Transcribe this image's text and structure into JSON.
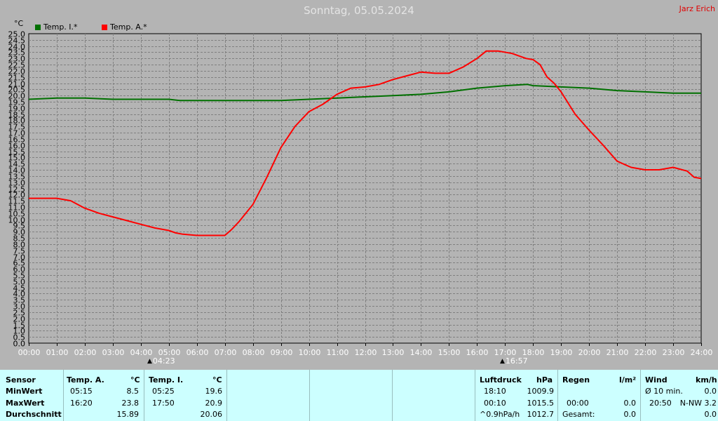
{
  "title": "Sonntag, 05.05.2024",
  "author": "Jarz Erich",
  "unit": "°C",
  "legend": [
    {
      "label": "Temp. I.*",
      "color": "#007000"
    },
    {
      "label": "Temp. A.*",
      "color": "#ff0000"
    }
  ],
  "sunrise": "04:23",
  "sunset": "16:57",
  "chart_data": {
    "type": "line",
    "title": "Sonntag, 05.05.2024",
    "xlabel": "",
    "ylabel": "°C",
    "xlim": [
      0,
      24
    ],
    "ylim": [
      0,
      25
    ],
    "grid": true,
    "legend_position": "top-left",
    "x_ticks": [
      "00:00",
      "01:00",
      "02:00",
      "03:00",
      "04:00",
      "05:00",
      "06:00",
      "07:00",
      "08:00",
      "09:00",
      "10:00",
      "11:00",
      "12:00",
      "13:00",
      "14:00",
      "15:00",
      "16:00",
      "17:00",
      "18:00",
      "19:00",
      "20:00",
      "21:00",
      "22:00",
      "23:00",
      "24:00"
    ],
    "y_ticks": [
      "0.0",
      "0.5",
      "1.0",
      "1.5",
      "2.0",
      "2.5",
      "3.0",
      "3.5",
      "4.0",
      "4.5",
      "5.0",
      "5.5",
      "6.0",
      "6.5",
      "7.0",
      "7.5",
      "8.0",
      "8.5",
      "9.0",
      "9.5",
      "10.0",
      "10.5",
      "11.0",
      "11.5",
      "12.0",
      "12.5",
      "13.0",
      "13.5",
      "14.0",
      "14.5",
      "15.0",
      "15.5",
      "16.0",
      "16.5",
      "17.0",
      "17.5",
      "18.0",
      "18.5",
      "19.0",
      "19.5",
      "20.0",
      "20.5",
      "21.0",
      "21.5",
      "22.0",
      "22.5",
      "23.0",
      "23.5",
      "24.0",
      "24.5",
      "25.0"
    ],
    "series": [
      {
        "name": "Temp. I.*",
        "color": "#007000",
        "x": [
          0,
          1,
          2,
          3,
          4,
          5,
          5.4,
          6,
          7,
          8,
          9,
          10,
          11,
          12,
          13,
          14,
          15,
          16,
          17,
          17.8,
          18,
          19,
          20,
          21,
          22,
          23,
          24
        ],
        "y": [
          19.7,
          19.8,
          19.8,
          19.7,
          19.7,
          19.7,
          19.6,
          19.6,
          19.6,
          19.6,
          19.6,
          19.7,
          19.8,
          19.9,
          20.0,
          20.1,
          20.3,
          20.6,
          20.8,
          20.9,
          20.8,
          20.7,
          20.6,
          20.4,
          20.3,
          20.2,
          20.2
        ]
      },
      {
        "name": "Temp. A.*",
        "color": "#ff0000",
        "x": [
          0,
          0.5,
          1,
          1.5,
          2,
          2.5,
          3,
          3.5,
          4,
          4.5,
          5,
          5.25,
          5.5,
          6,
          6.5,
          7,
          7.25,
          7.5,
          8,
          8.5,
          9,
          9.5,
          10,
          10.5,
          11,
          11.5,
          12,
          12.5,
          13,
          13.5,
          14,
          14.5,
          15,
          15.5,
          16,
          16.33,
          16.75,
          17.25,
          17.75,
          18,
          18.25,
          18.5,
          18.75,
          19,
          19.5,
          20,
          20.5,
          21,
          21.5,
          22,
          22.5,
          23,
          23.5,
          23.75,
          24
        ],
        "y": [
          11.7,
          11.7,
          11.7,
          11.5,
          10.9,
          10.5,
          10.2,
          9.9,
          9.6,
          9.3,
          9.1,
          8.9,
          8.8,
          8.7,
          8.7,
          8.7,
          9.2,
          9.8,
          11.2,
          13.4,
          15.8,
          17.5,
          18.7,
          19.3,
          20.1,
          20.6,
          20.7,
          20.9,
          21.3,
          21.6,
          21.9,
          21.8,
          21.8,
          22.3,
          23.0,
          23.6,
          23.6,
          23.4,
          23.0,
          22.9,
          22.5,
          21.5,
          21.0,
          20.3,
          18.5,
          17.2,
          16.0,
          14.7,
          14.2,
          14.0,
          14.0,
          14.2,
          13.9,
          13.4,
          13.3
        ]
      }
    ]
  },
  "stats": {
    "sensor_header": "Sensor",
    "row_min": "MinWert",
    "row_max": "MaxWert",
    "row_avg": "Durchschnitt",
    "temp_a": {
      "header": "Temp. A.",
      "unit": "°C",
      "min_time": "05:15",
      "min_val": "8.5",
      "max_time": "16:20",
      "max_val": "23.8",
      "avg": "15.89"
    },
    "temp_i": {
      "header": "Temp. I.",
      "unit": "°C",
      "min_time": "05:25",
      "min_val": "19.6",
      "max_time": "17:50",
      "max_val": "20.9",
      "avg": "20.06"
    },
    "pressure": {
      "header": "Luftdruck",
      "unit": "hPa",
      "min_time": "18:10",
      "min_val": "1009.9",
      "max_time": "00:10",
      "max_val": "1015.5",
      "trend_label": "^0.9hPa/h",
      "trend_val": "1012.7"
    },
    "rain": {
      "header": "Regen",
      "unit": "l/m²",
      "max_time": "00:00",
      "max_val": "0.0",
      "total_label": "Gesamt:",
      "total_val": "0.0"
    },
    "wind": {
      "header": "Wind",
      "unit": "km/h",
      "avg_label": "Ø 10 min.",
      "avg_val": "0.0",
      "max_time": "20:50",
      "max_val": "N-NW 3.2",
      "last_val": "0.0"
    }
  }
}
